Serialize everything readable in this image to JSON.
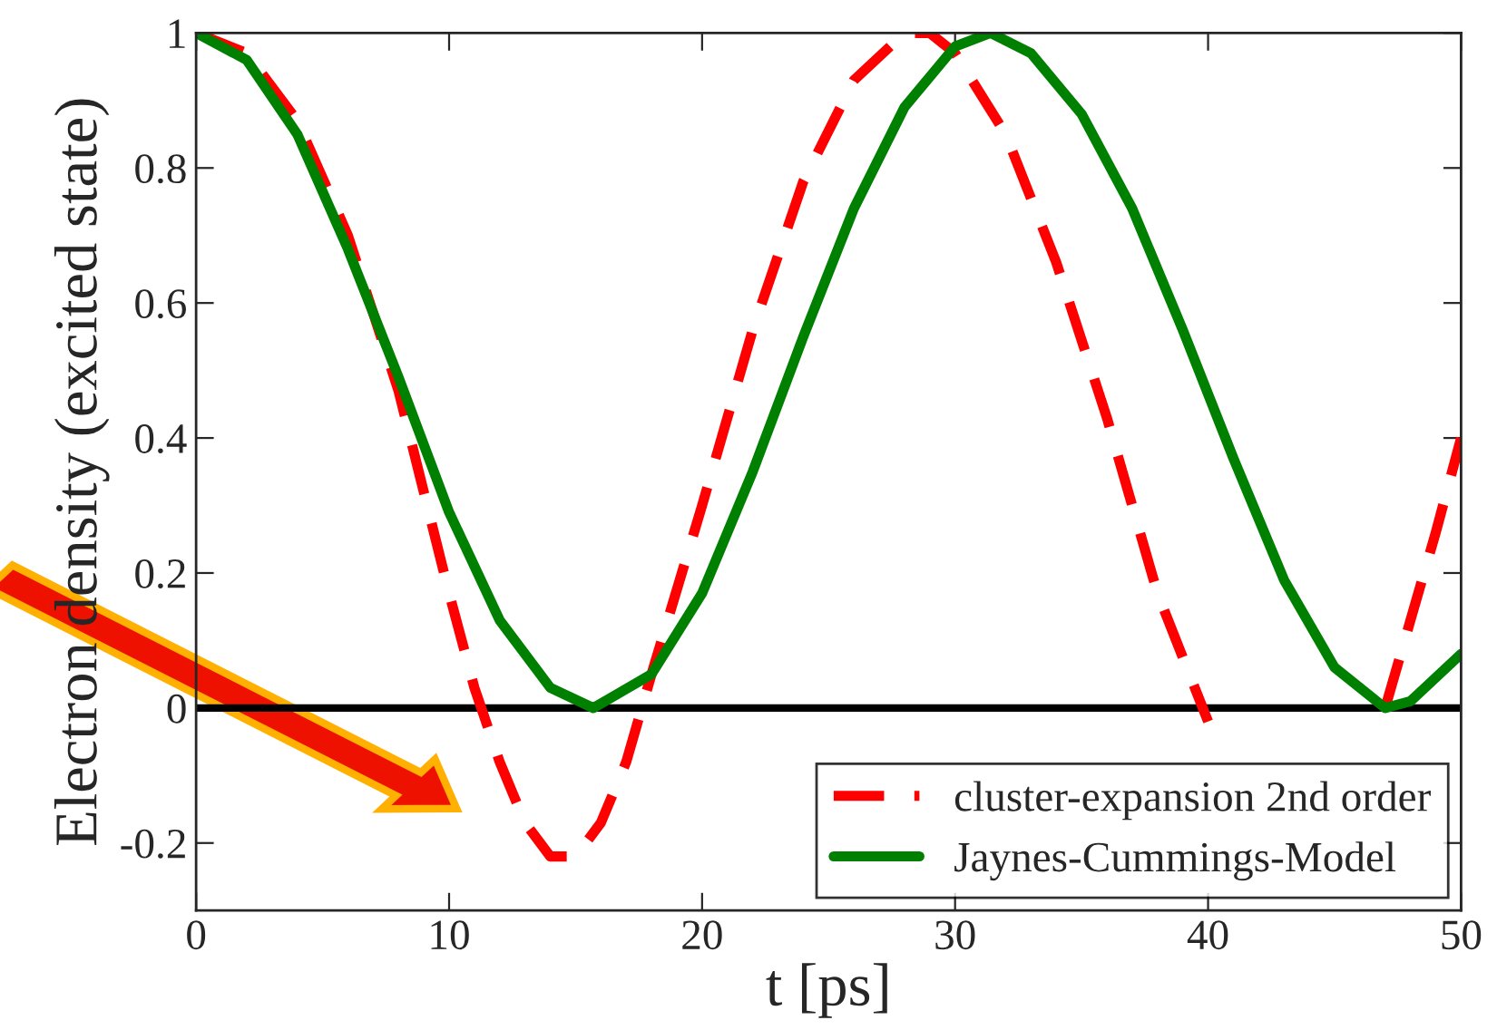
{
  "chart_data": {
    "type": "line",
    "xlabel": "t [ps]",
    "ylabel": "Electron density (excited state)",
    "xlim": [
      0,
      50
    ],
    "ylim": [
      -0.3,
      1
    ],
    "xticks": [
      0,
      10,
      20,
      30,
      40,
      50
    ],
    "yticks": [
      {
        "value": -0.2,
        "label": "-0.2"
      },
      0,
      0.2,
      0.4,
      0.6,
      0.8,
      1
    ],
    "grid": false,
    "legend": "bottom right",
    "ref_lines": [
      {
        "axis": "y",
        "value": 0,
        "color": "#000000",
        "line_style": "solid"
      }
    ],
    "series": [
      {
        "name": "cluster-expansion 2nd order",
        "color": "#ff0000",
        "line_style": "dashed",
        "x": [
          0,
          2,
          4,
          6,
          8,
          10,
          11,
          12,
          13,
          14,
          15,
          16,
          17,
          18,
          20,
          22,
          24,
          26,
          28,
          29,
          30,
          32,
          34,
          36,
          38,
          40,
          41,
          42,
          43,
          44,
          45,
          46,
          47,
          48,
          49,
          50
        ],
        "values": [
          1,
          0.97,
          0.87,
          0.7,
          0.47,
          0.17,
          0.03,
          -0.08,
          -0.17,
          -0.22,
          -0.22,
          -0.17,
          -0.08,
          0.05,
          0.3,
          0.56,
          0.78,
          0.93,
          1.0,
          1.0,
          0.97,
          0.85,
          0.66,
          0.43,
          0.17,
          -0.02,
          null,
          null,
          null,
          null,
          null,
          null,
          0.0,
          0.13,
          0.26,
          0.4
        ]
      },
      {
        "name": "Jaynes-Cummings-Model",
        "color": "#008000",
        "line_style": "solid",
        "x": [
          0,
          2,
          4,
          6,
          8,
          10,
          12,
          14,
          15.7,
          18,
          20,
          22,
          24,
          26,
          28,
          30,
          31.4,
          33,
          35,
          37,
          39,
          41,
          43,
          45,
          47,
          48,
          50
        ],
        "values": [
          1,
          0.96,
          0.85,
          0.68,
          0.49,
          0.29,
          0.13,
          0.03,
          0,
          0.05,
          0.17,
          0.35,
          0.55,
          0.74,
          0.89,
          0.98,
          1,
          0.97,
          0.88,
          0.74,
          0.56,
          0.37,
          0.19,
          0.06,
          0,
          0.01,
          0.08
        ]
      }
    ]
  }
}
